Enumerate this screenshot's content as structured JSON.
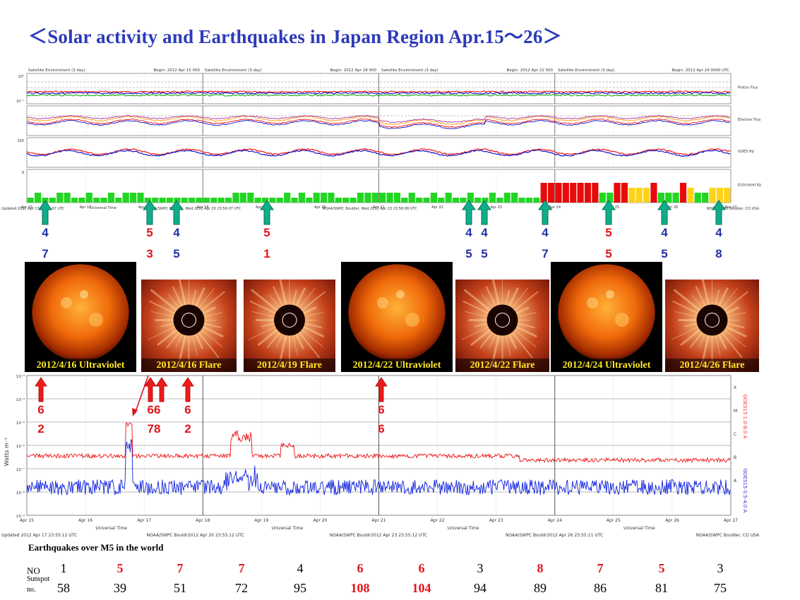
{
  "title": "＜Solar activity and Earthquakes  in Japan Region Apr.15～26＞",
  "top_panel": {
    "header_left": "Satellite Environment (3 day)",
    "header_begin": [
      "Begin:  2012 Apr 15 000",
      "Begin:  2012 Apr 18 000",
      "Begin:  2012 Apr 21 000",
      "Begin:  2012 Apr 24 0000 UTC"
    ],
    "right_labels": [
      "Proton Flux",
      "Electron Flux",
      "GOES Hp",
      "Estimated Kp"
    ],
    "x_ticks": [
      "Apr 15",
      "Apr 16",
      "Apr 17",
      "Apr 18",
      "Apr 19",
      "Apr 20",
      "Apr 21",
      "Apr 22",
      "Apr 23",
      "Apr 24",
      "Apr 25",
      "Apr 26",
      "Apr 27"
    ],
    "footer": [
      "Updated 2012 Apr 17 23:56:07 UTC",
      "Universal Time",
      "NOAA/SWPC Boulder, Wed 2012 Apr 20 23:56:07 UTC",
      "NOAA/SWPC Boulder, Wed 2012 Apr 23 23:56:08 UTC",
      "NOAA/SWPC Boulder, CO USA"
    ],
    "kp_colors": {
      "green": "#22d622",
      "yellow": "#ffd21a",
      "red": "#e80b0b"
    }
  },
  "top_markers": [
    {
      "top": "4",
      "bottom": "7",
      "color": "blue"
    },
    {
      "top": "5",
      "bottom": "3",
      "color": "red"
    },
    {
      "top": "4",
      "bottom": "5",
      "color": "blue"
    },
    {
      "top": "5",
      "bottom": "1",
      "color": "red"
    },
    {
      "top": "4",
      "bottom": "5",
      "color": "blue"
    },
    {
      "top": "4",
      "bottom": "5",
      "color": "blue"
    },
    {
      "top": "4",
      "bottom": "7",
      "color": "blue"
    },
    {
      "top": "5",
      "bottom": "5",
      "color": "red"
    },
    {
      "top": "4",
      "bottom": "5",
      "color": "blue"
    },
    {
      "top": "4",
      "bottom": "8",
      "color": "blue"
    }
  ],
  "images": [
    {
      "caption": "2012/4/16 Ultraviolet",
      "kind": "sun"
    },
    {
      "caption": "2012/4/16 Flare",
      "kind": "corona"
    },
    {
      "caption": "2012/4/19 Flare",
      "kind": "corona"
    },
    {
      "caption": "2012/4/22 Ultraviolet",
      "kind": "sun"
    },
    {
      "caption": "2012/4/22 Flare",
      "kind": "corona"
    },
    {
      "caption": "2012/4/24 Ultraviolet",
      "kind": "sun"
    },
    {
      "caption": "2012/4/26 Flare",
      "kind": "corona"
    }
  ],
  "bottom_markers": [
    {
      "top": "6",
      "bottom": "2"
    },
    {
      "top": "66",
      "bottom": "78"
    },
    {
      "top": "6",
      "bottom": "2"
    },
    {
      "top": "6",
      "bottom": "6"
    }
  ],
  "xray_panel": {
    "ylabel": "Watts m⁻²",
    "right_labels": [
      "GOES15 1.0-8.0 A",
      "GOES15 0.5-4.0 A"
    ],
    "class_labels": [
      "X",
      "M",
      "C",
      "B",
      "A"
    ],
    "x_ticks": [
      "Apr 15",
      "Apr 16",
      "Apr 17",
      "Apr 18",
      "Apr 19",
      "Apr 20",
      "Apr 21",
      "Apr 22",
      "Apr 23",
      "Apr 24",
      "Apr 25",
      "Apr 26",
      "Apr 27"
    ],
    "footer": [
      "Updated 2012 Apr 17 23:55:12 UTC",
      "Universal Time",
      "NOAA/SWPC Bouldr2012 Apr 20 23:55:12 UTC",
      "NOAA/SWPC Bouldr2012 Apr 23 23:55:12 UTC",
      "NOAA/SWPC Bouldr2012 Apr 26 23:55:11 UTC",
      "NOAA/SWPC Boulder, CO USA"
    ],
    "colors": {
      "long": "#e11",
      "short": "#1122dd"
    }
  },
  "earthquakes": {
    "heading": "Earthquakes  over  M5 in the world",
    "no_label": "NO",
    "sunspot_label_1": "Sunspot",
    "sunspot_label_2": "no.",
    "no_values": [
      {
        "v": "1",
        "color": "black"
      },
      {
        "v": "5",
        "color": "red"
      },
      {
        "v": "7",
        "color": "red"
      },
      {
        "v": "7",
        "color": "red"
      },
      {
        "v": "4",
        "color": "black"
      },
      {
        "v": "6",
        "color": "red"
      },
      {
        "v": "6",
        "color": "red"
      },
      {
        "v": "3",
        "color": "black"
      },
      {
        "v": "8",
        "color": "red"
      },
      {
        "v": "7",
        "color": "red"
      },
      {
        "v": "5",
        "color": "red"
      },
      {
        "v": "3",
        "color": "black"
      }
    ],
    "sunspot_values": [
      {
        "v": "58",
        "color": "black"
      },
      {
        "v": "39",
        "color": "black"
      },
      {
        "v": "51",
        "color": "black"
      },
      {
        "v": "72",
        "color": "black"
      },
      {
        "v": "95",
        "color": "black"
      },
      {
        "v": "108",
        "color": "red"
      },
      {
        "v": "104",
        "color": "red"
      },
      {
        "v": "94",
        "color": "black"
      },
      {
        "v": "89",
        "color": "black"
      },
      {
        "v": "86",
        "color": "black"
      },
      {
        "v": "81",
        "color": "black"
      },
      {
        "v": "75",
        "color": "black"
      }
    ]
  }
}
